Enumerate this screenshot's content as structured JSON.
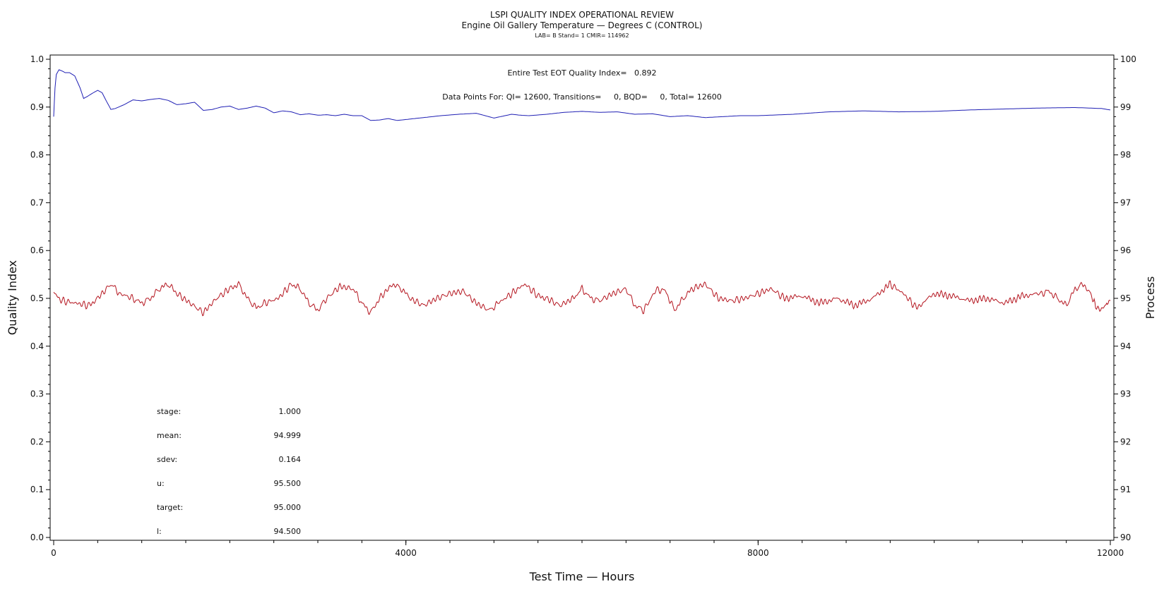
{
  "chart_data": {
    "type": "line",
    "title": "LSPI QUALITY INDEX OPERATIONAL REVIEW",
    "subtitle": "Engine Oil Gallery Temperature — Degrees C (CONTROL)",
    "subtitle2": "LAB= B Stand= 1 CMIR= 114962",
    "annotation_qi": "Entire Test EOT Quality Index=   0.892",
    "annotation_points": "Data Points For: QI= 12600, Transitions=     0, BQD=     0, Total= 12600",
    "xlabel": "Test Time — Hours",
    "ylabel_left": "Quality Index",
    "ylabel_right": "Process",
    "xlim": [
      0,
      12000
    ],
    "ylim_left": [
      0.0,
      1.0
    ],
    "ylim_right": [
      90,
      100
    ],
    "x_ticks": [
      "0",
      "4000",
      "8000",
      "12000"
    ],
    "y_left_ticks": [
      "0.0",
      "0.1",
      "0.2",
      "0.3",
      "0.4",
      "0.5",
      "0.6",
      "0.7",
      "0.8",
      "0.9",
      "1.0"
    ],
    "y_right_ticks": [
      "90",
      "91",
      "92",
      "93",
      "94",
      "95",
      "96",
      "97",
      "98",
      "99",
      "100"
    ],
    "grid": false,
    "series": [
      {
        "role": "quality-index",
        "axis": "left",
        "color": "#1f1fb4",
        "x": [
          0,
          15,
          30,
          60,
          90,
          130,
          180,
          240,
          300,
          340,
          380,
          450,
          500,
          550,
          600,
          650,
          700,
          800,
          900,
          1000,
          1100,
          1200,
          1300,
          1400,
          1500,
          1600,
          1700,
          1800,
          1900,
          2000,
          2100,
          2200,
          2300,
          2400,
          2500,
          2600,
          2700,
          2800,
          2900,
          3000,
          3100,
          3200,
          3300,
          3400,
          3500,
          3600,
          3700,
          3800,
          3900,
          4000,
          4200,
          4400,
          4600,
          4800,
          5000,
          5200,
          5300,
          5400,
          5600,
          5800,
          6000,
          6200,
          6400,
          6600,
          6800,
          7000,
          7200,
          7400,
          7600,
          7800,
          8000,
          8400,
          8800,
          9200,
          9600,
          10000,
          10400,
          10800,
          11200,
          11600,
          11900,
          12000
        ],
        "values": [
          0.88,
          0.94,
          0.968,
          0.978,
          0.976,
          0.972,
          0.972,
          0.965,
          0.94,
          0.918,
          0.922,
          0.93,
          0.935,
          0.93,
          0.912,
          0.895,
          0.897,
          0.905,
          0.915,
          0.913,
          0.916,
          0.918,
          0.914,
          0.905,
          0.907,
          0.91,
          0.893,
          0.895,
          0.9,
          0.902,
          0.895,
          0.898,
          0.902,
          0.898,
          0.888,
          0.892,
          0.89,
          0.884,
          0.886,
          0.883,
          0.884,
          0.882,
          0.885,
          0.882,
          0.882,
          0.872,
          0.873,
          0.876,
          0.872,
          0.874,
          0.878,
          0.882,
          0.885,
          0.887,
          0.877,
          0.885,
          0.883,
          0.882,
          0.885,
          0.889,
          0.891,
          0.889,
          0.89,
          0.885,
          0.886,
          0.88,
          0.882,
          0.878,
          0.88,
          0.882,
          0.882,
          0.885,
          0.89,
          0.892,
          0.89,
          0.891,
          0.894,
          0.896,
          0.898,
          0.899,
          0.897,
          0.894
        ]
      },
      {
        "role": "process",
        "axis": "right",
        "color": "#b4141e",
        "x": [
          0,
          100,
          250,
          400,
          500,
          650,
          750,
          900,
          1000,
          1100,
          1200,
          1300,
          1400,
          1550,
          1700,
          1850,
          2000,
          2100,
          2200,
          2300,
          2400,
          2550,
          2700,
          2800,
          2900,
          3000,
          3100,
          3250,
          3400,
          3500,
          3600,
          3700,
          3850,
          3950,
          4050,
          4200,
          4350,
          4500,
          4650,
          4800,
          4950,
          5050,
          5200,
          5350,
          5500,
          5600,
          5750,
          5900,
          6000,
          6100,
          6200,
          6350,
          6500,
          6600,
          6700,
          6850,
          6950,
          7050,
          7150,
          7250,
          7400,
          7550,
          7700,
          7850,
          8000,
          8150,
          8300,
          8500,
          8700,
          8900,
          9100,
          9300,
          9500,
          9650,
          9800,
          10000,
          10200,
          10400,
          10600,
          10800,
          11000,
          11200,
          11300,
          11400,
          11500,
          11600,
          11700,
          11800,
          11850,
          11950,
          12000
        ],
        "values": [
          95.1,
          94.95,
          94.9,
          94.85,
          95.0,
          95.3,
          95.1,
          95.0,
          94.9,
          95.0,
          95.2,
          95.3,
          95.1,
          94.9,
          94.7,
          95.0,
          95.2,
          95.3,
          95.0,
          94.8,
          94.9,
          95.0,
          95.3,
          95.2,
          94.9,
          94.75,
          95.0,
          95.25,
          95.2,
          94.9,
          94.7,
          95.0,
          95.3,
          95.2,
          95.0,
          94.85,
          95.0,
          95.1,
          95.15,
          94.9,
          94.75,
          94.9,
          95.1,
          95.3,
          95.05,
          95.0,
          94.85,
          95.0,
          95.2,
          95.0,
          94.95,
          95.1,
          95.2,
          94.85,
          94.75,
          95.2,
          95.15,
          94.75,
          95.0,
          95.2,
          95.3,
          95.0,
          94.95,
          95.0,
          95.1,
          95.2,
          95.0,
          95.05,
          94.9,
          95.0,
          94.85,
          95.0,
          95.3,
          95.1,
          94.8,
          95.1,
          95.05,
          94.95,
          95.0,
          94.9,
          95.05,
          95.1,
          95.15,
          95.0,
          94.85,
          95.2,
          95.3,
          95.0,
          94.75,
          94.85,
          94.95
        ]
      }
    ]
  },
  "stats": [
    {
      "label": "stage:",
      "value": "1.000"
    },
    {
      "label": "mean:",
      "value": "94.999"
    },
    {
      "label": "sdev:",
      "value": "0.164"
    },
    {
      "label": "u:",
      "value": "95.500"
    },
    {
      "label": "target:",
      "value": "95.000"
    },
    {
      "label": "l:",
      "value": "94.500"
    }
  ]
}
